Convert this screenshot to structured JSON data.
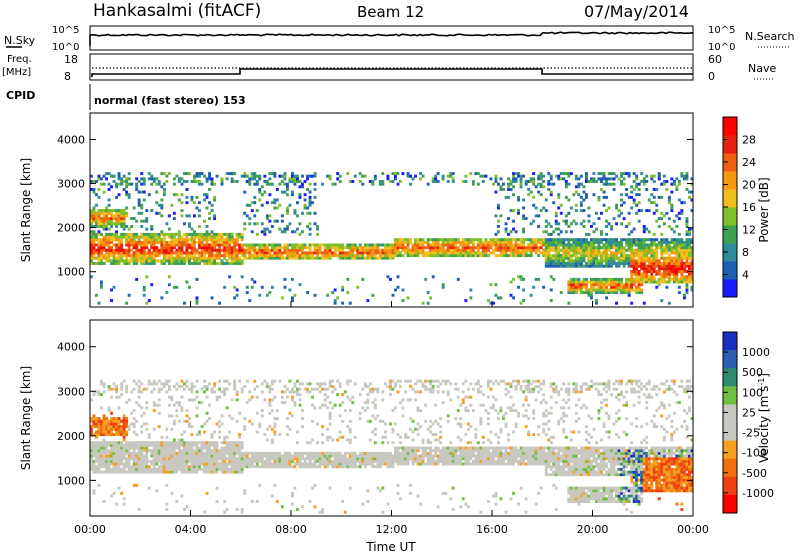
{
  "header": {
    "station": "Hankasalmi (fitACF)",
    "beam": "Beam 12",
    "date": "07/May/2014"
  },
  "noise_panel": {
    "left_label": "N.Sky",
    "right_label": "N.Search",
    "left_ticks": [
      "10^5",
      "10^0"
    ],
    "right_ticks": [
      "10^5",
      "10^0"
    ]
  },
  "freq_panel": {
    "left_label_line1": "Freq.",
    "left_label_line2": "[MHz]",
    "left_ticks": [
      "18",
      "8"
    ],
    "right_label": "Nave",
    "right_ticks": [
      "60",
      "0"
    ]
  },
  "cpid": {
    "label": "CPID",
    "mode": "normal (fast stereo) 153"
  },
  "chart_data": [
    {
      "type": "heatmap",
      "name": "power",
      "ylabel": "Slant Range [km]",
      "ylim": [
        200,
        4600
      ],
      "yticks": [
        "1000",
        "2000",
        "3000",
        "4000"
      ],
      "xlim_hours": [
        0,
        24
      ],
      "colorbar": {
        "label": "Power [dB]",
        "ticks": [
          "4",
          "8",
          "12",
          "16",
          "20",
          "24",
          "28"
        ],
        "colors": [
          "#1a1aff",
          "#1e5fb4",
          "#2f8a9a",
          "#3fa050",
          "#7dc02a",
          "#f0c020",
          "#f59a10",
          "#f06010",
          "#e62010",
          "#ff0000"
        ]
      },
      "bands": [
        {
          "t0": 0,
          "t1": 6,
          "r0": 1150,
          "r1": 1850,
          "level": 0.85
        },
        {
          "t0": 6,
          "t1": 12,
          "r0": 1250,
          "r1": 1600,
          "level": 0.8
        },
        {
          "t0": 12,
          "t1": 18,
          "r0": 1300,
          "r1": 1750,
          "level": 0.78
        },
        {
          "t0": 18,
          "t1": 24,
          "r0": 1100,
          "r1": 1700,
          "level": 0.55
        },
        {
          "t0": 21.5,
          "t1": 24,
          "r0": 700,
          "r1": 1400,
          "level": 0.92
        },
        {
          "t0": 0,
          "t1": 1.5,
          "r0": 2000,
          "r1": 2400,
          "level": 0.75
        },
        {
          "t0": 19,
          "t1": 22,
          "r0": 500,
          "r1": 800,
          "level": 0.8
        }
      ]
    },
    {
      "type": "heatmap",
      "name": "velocity",
      "ylabel": "Slant Range [km]",
      "ylim": [
        200,
        4600
      ],
      "yticks": [
        "1000",
        "2000",
        "3000",
        "4000"
      ],
      "xlabel": "Time UT",
      "xticks": [
        "00:00",
        "04:00",
        "08:00",
        "12:00",
        "16:00",
        "20:00",
        "00:00"
      ],
      "colorbar": {
        "label": "Velocity [m s^-1]",
        "ticks": [
          "1000",
          "500",
          "100",
          "25",
          "-25",
          "-100",
          "-500",
          "-1000"
        ],
        "colors": [
          "#1a2fbf",
          "#2a5fb0",
          "#2f8a70",
          "#6fc040",
          "#c8c8c0",
          "#c8c8c0",
          "#f5a020",
          "#f07010",
          "#f04010",
          "#ff0000"
        ]
      }
    }
  ],
  "colors": {
    "axis": "#000000",
    "scatter_grey": "#c8c8c0"
  }
}
